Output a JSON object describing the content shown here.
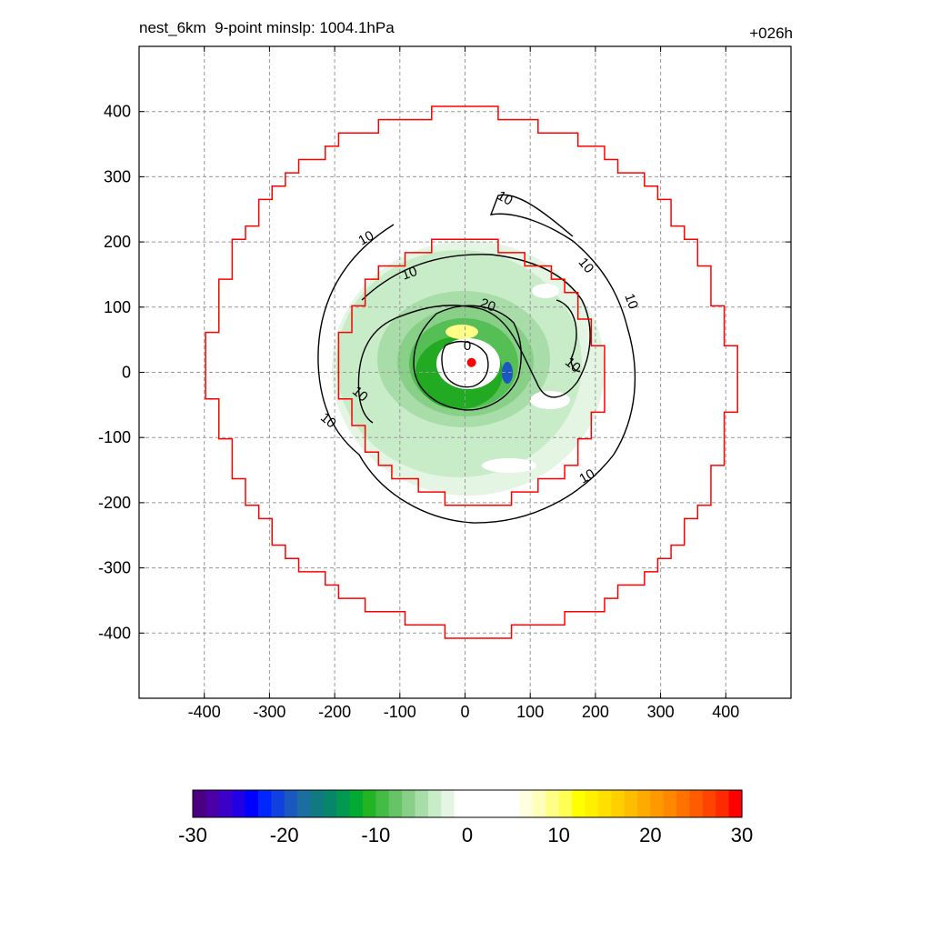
{
  "title": "nest_6km  9-point minslp: 1004.1hPa",
  "subtitle": "+026h",
  "chart_data": {
    "type": "heatmap",
    "title": "nest_6km  9-point minslp: 1004.1hPa",
    "subtitle": "+026h",
    "xlabel": "",
    "ylabel": "",
    "xlim": [
      -500,
      500
    ],
    "ylim": [
      -500,
      500
    ],
    "x_ticks": [
      -400,
      -300,
      -200,
      -100,
      0,
      100,
      200,
      300,
      400
    ],
    "y_ticks": [
      400,
      300,
      200,
      100,
      0,
      -100,
      -200,
      -300,
      -400
    ],
    "grid": true,
    "colorbar": {
      "ticks": [
        -30,
        -20,
        -10,
        0,
        10,
        20,
        30
      ],
      "range": [
        -30,
        30
      ],
      "colors": [
        "#4b0082",
        "#4a00a6",
        "#3a00c8",
        "#2200e6",
        "#0000ff",
        "#0026ff",
        "#1040e0",
        "#1a58c0",
        "#1a6ea0",
        "#107a80",
        "#08866a",
        "#00994f",
        "#00aa33",
        "#22b422",
        "#44bb44",
        "#66c466",
        "#88d088",
        "#a8dca8",
        "#c8ecc8",
        "#e4f5e4",
        "#ffffff",
        "#ffffff",
        "#ffffff",
        "#ffffff",
        "#ffffff",
        "#ffffe0",
        "#ffffbb",
        "#ffff88",
        "#ffff55",
        "#ffff00",
        "#fff000",
        "#ffe000",
        "#ffcf00",
        "#ffbd00",
        "#ffaa00",
        "#ff9900",
        "#ff8800",
        "#ff7200",
        "#ff5c00",
        "#ff4400",
        "#ff2a00",
        "#ff0000"
      ]
    },
    "contour_labels": [
      "10",
      "10",
      "10",
      "10",
      "10",
      "10",
      "10",
      "10",
      "10",
      "20",
      "0"
    ],
    "center": {
      "x": 10,
      "y": 15
    },
    "red_rings": [
      {
        "name": "outer",
        "radius": 400
      },
      {
        "name": "inner",
        "radius": 200
      }
    ]
  }
}
